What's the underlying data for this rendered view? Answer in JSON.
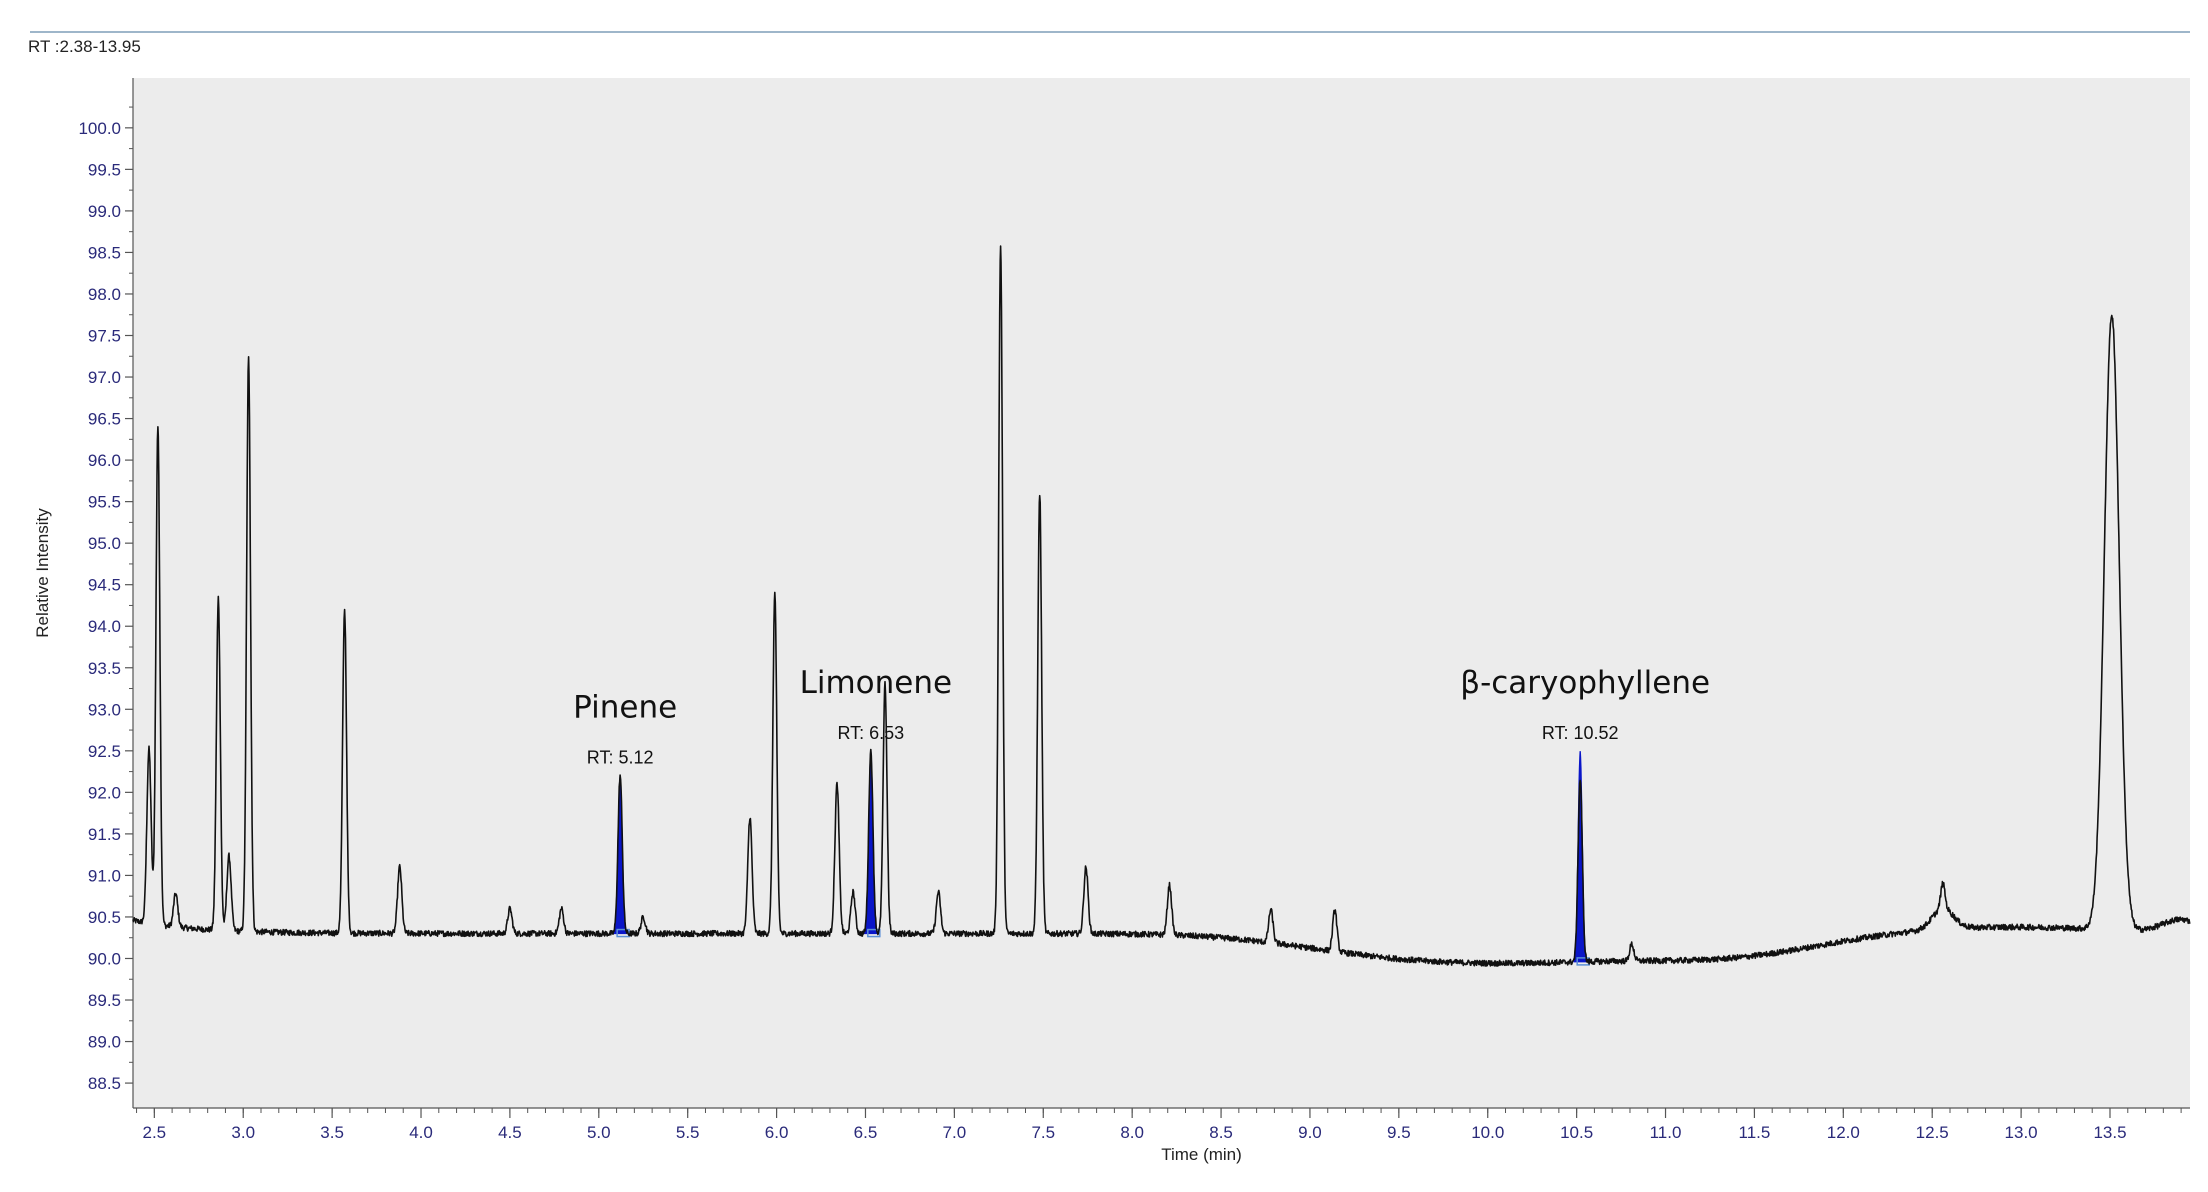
{
  "header": {
    "range_label": "RT :2.38-13.95"
  },
  "colors": {
    "plot_bg": "#ececec",
    "trace": "#111111",
    "peak_fill": "#0a16c8",
    "axis_text": "#2a2a7a"
  },
  "chart_data": {
    "type": "line",
    "title": "",
    "xlabel": "Time (min)",
    "ylabel": "Relative Intensity",
    "xlim": [
      2.38,
      13.95
    ],
    "ylim": [
      88.2,
      100.6
    ],
    "baseline": 90.3,
    "xticks": [
      "2.5",
      "3.0",
      "3.5",
      "4.0",
      "4.5",
      "5.0",
      "5.5",
      "6.0",
      "6.5",
      "7.0",
      "7.5",
      "8.0",
      "8.5",
      "9.0",
      "9.5",
      "10.0",
      "10.5",
      "11.0",
      "11.5",
      "12.0",
      "12.5",
      "13.0",
      "13.5"
    ],
    "yticks": [
      "88.5",
      "89.0",
      "89.5",
      "90.0",
      "90.5",
      "91.0",
      "91.5",
      "92.0",
      "92.5",
      "93.0",
      "93.5",
      "94.0",
      "94.5",
      "95.0",
      "95.5",
      "96.0",
      "96.5",
      "97.0",
      "97.5",
      "98.0",
      "98.5",
      "99.0",
      "99.5",
      "100.0"
    ],
    "peaks": [
      {
        "rt": 2.47,
        "height": 92.4
      },
      {
        "rt": 2.52,
        "height": 96.3
      },
      {
        "rt": 2.62,
        "height": 90.7
      },
      {
        "rt": 2.86,
        "height": 94.3
      },
      {
        "rt": 2.92,
        "height": 91.2
      },
      {
        "rt": 3.03,
        "height": 97.2
      },
      {
        "rt": 3.57,
        "height": 94.2
      },
      {
        "rt": 3.88,
        "height": 91.1
      },
      {
        "rt": 4.5,
        "height": 90.6
      },
      {
        "rt": 4.79,
        "height": 90.6
      },
      {
        "rt": 5.12,
        "height": 92.2
      },
      {
        "rt": 5.25,
        "height": 90.5
      },
      {
        "rt": 5.85,
        "height": 91.7
      },
      {
        "rt": 5.99,
        "height": 94.4
      },
      {
        "rt": 6.34,
        "height": 92.1
      },
      {
        "rt": 6.43,
        "height": 90.8
      },
      {
        "rt": 6.53,
        "height": 92.5
      },
      {
        "rt": 6.61,
        "height": 93.3
      },
      {
        "rt": 6.91,
        "height": 90.8
      },
      {
        "rt": 7.26,
        "height": 98.6
      },
      {
        "rt": 7.48,
        "height": 95.6
      },
      {
        "rt": 7.74,
        "height": 91.1
      },
      {
        "rt": 8.21,
        "height": 90.9
      },
      {
        "rt": 8.78,
        "height": 90.7
      },
      {
        "rt": 9.14,
        "height": 90.8
      },
      {
        "rt": 10.52,
        "height": 92.5
      },
      {
        "rt": 10.81,
        "height": 90.5
      },
      {
        "rt": 12.56,
        "height": 90.6
      },
      {
        "rt": 13.51,
        "height": 97.7
      }
    ],
    "highlighted_peaks": [
      {
        "rt": 5.12,
        "rt_label": "RT: 5.12",
        "name": "Pinene"
      },
      {
        "rt": 6.53,
        "rt_label": "RT: 6.53",
        "name": "Limonene"
      },
      {
        "rt": 10.52,
        "rt_label": "RT: 10.52",
        "name": "β-caryophyllene"
      }
    ]
  }
}
